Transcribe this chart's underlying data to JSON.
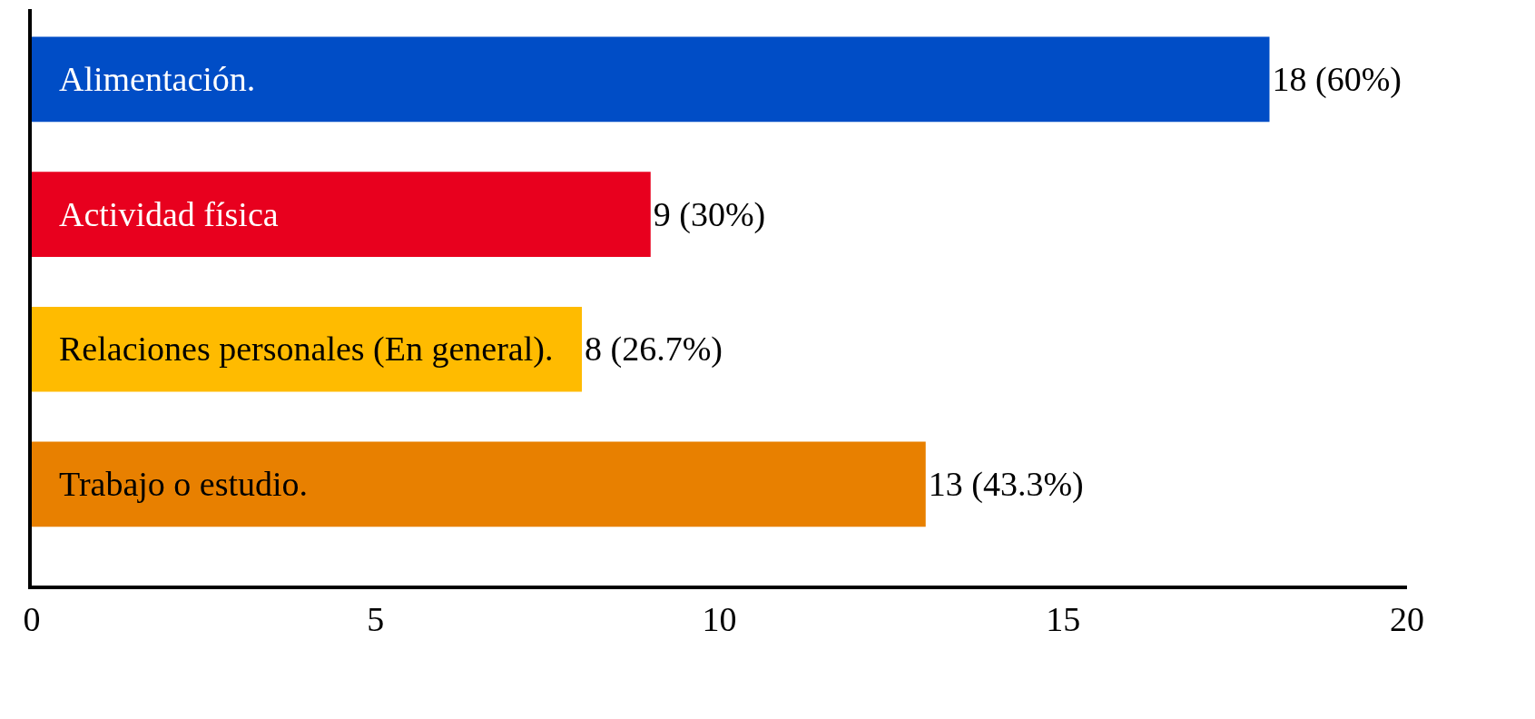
{
  "chart_data": {
    "type": "bar",
    "orientation": "horizontal",
    "categories": [
      "Alimentación.",
      "Actividad física",
      "Relaciones personales (En general).",
      "Trabajo o estudio."
    ],
    "values": [
      18,
      9,
      8,
      13
    ],
    "colors": [
      "#004dc6",
      "#e8001e",
      "#ffbb00",
      "#e88000"
    ],
    "value_labels": [
      "18 (60%)",
      "9 (30%)",
      "8 (26.7%)",
      "13 (43.3%)"
    ],
    "xlim": [
      0,
      20
    ],
    "xticks": [
      0,
      5,
      10,
      15,
      20
    ],
    "tick_labels": "x"
  }
}
